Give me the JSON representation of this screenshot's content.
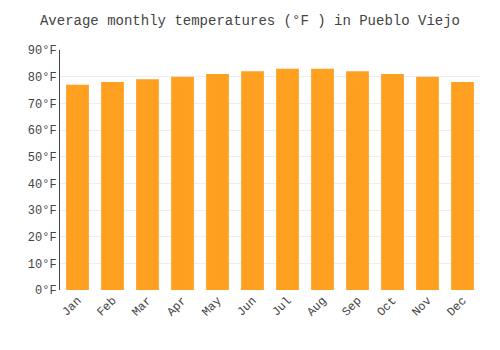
{
  "chart_data": {
    "type": "bar",
    "title": "Average monthly temperatures (°F ) in Pueblo Viejo",
    "categories": [
      "Jan",
      "Feb",
      "Mar",
      "Apr",
      "May",
      "Jun",
      "Jul",
      "Aug",
      "Sep",
      "Oct",
      "Nov",
      "Dec"
    ],
    "values": [
      77,
      78,
      79,
      80,
      81,
      82,
      83,
      83,
      82,
      81,
      80,
      78
    ],
    "color": "#FFA020",
    "ylim": [
      0,
      90
    ],
    "yticks": [
      {
        "value": 0,
        "label": "0°F"
      },
      {
        "value": 10,
        "label": "10°F"
      },
      {
        "value": 20,
        "label": "20°F"
      },
      {
        "value": 30,
        "label": "30°F"
      },
      {
        "value": 40,
        "label": "40°F"
      },
      {
        "value": 50,
        "label": "50°F"
      },
      {
        "value": 60,
        "label": "60°F"
      },
      {
        "value": 70,
        "label": "70°F"
      },
      {
        "value": 80,
        "label": "80°F"
      },
      {
        "value": 90,
        "label": "90°F"
      }
    ],
    "grid": true
  }
}
